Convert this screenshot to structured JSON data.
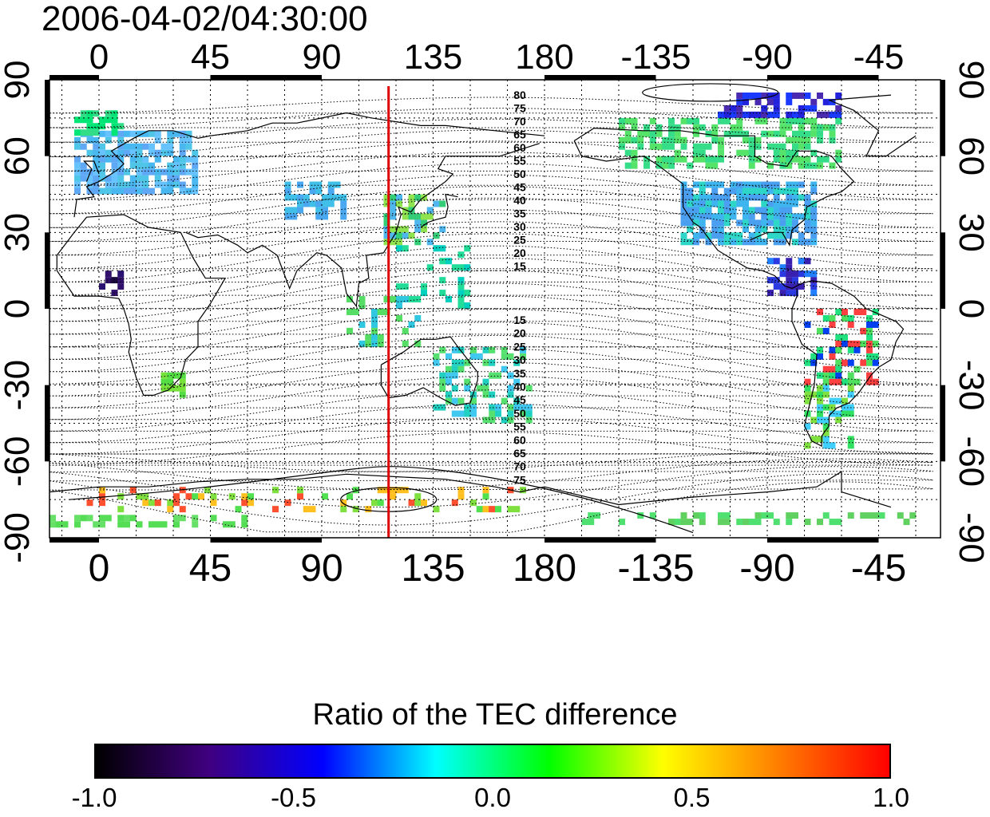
{
  "title": "2006-04-02/04:30:00",
  "map": {
    "top_lon_labels": [
      "0",
      "45",
      "90",
      "135",
      "180",
      "-135",
      "-90",
      "-45"
    ],
    "bottom_lon_labels": [
      "0",
      "45",
      "90",
      "135",
      "180",
      "-135",
      "-90",
      "-45"
    ],
    "left_lat_labels": [
      "90",
      "60",
      "30",
      "0",
      "-30",
      "-60",
      "-90"
    ],
    "right_lat_labels": [
      "90",
      "60",
      "30",
      "0",
      "-30",
      "-60",
      "-90"
    ],
    "north_contour_labels": [
      "80",
      "75",
      "70",
      "65",
      "60",
      "55",
      "50",
      "45",
      "40",
      "35",
      "30",
      "25",
      "20",
      "15"
    ],
    "south_contour_labels": [
      "15",
      "20",
      "25",
      "30",
      "35",
      "40",
      "45",
      "50",
      "55",
      "60",
      "65",
      "70",
      "75"
    ],
    "marker_longitude": 117,
    "marker_color": "#e00000"
  },
  "colorbar": {
    "title": "Ratio of the TEC difference",
    "tick_labels": [
      "-1.0",
      "-0.5",
      "0.0",
      "0.5",
      "1.0"
    ],
    "range": [
      -1.0,
      1.0
    ],
    "colors": [
      "#000000",
      "#400080",
      "#0000ff",
      "#00ffff",
      "#00ff00",
      "#ffff00",
      "#ff8000",
      "#ff0000"
    ]
  }
}
